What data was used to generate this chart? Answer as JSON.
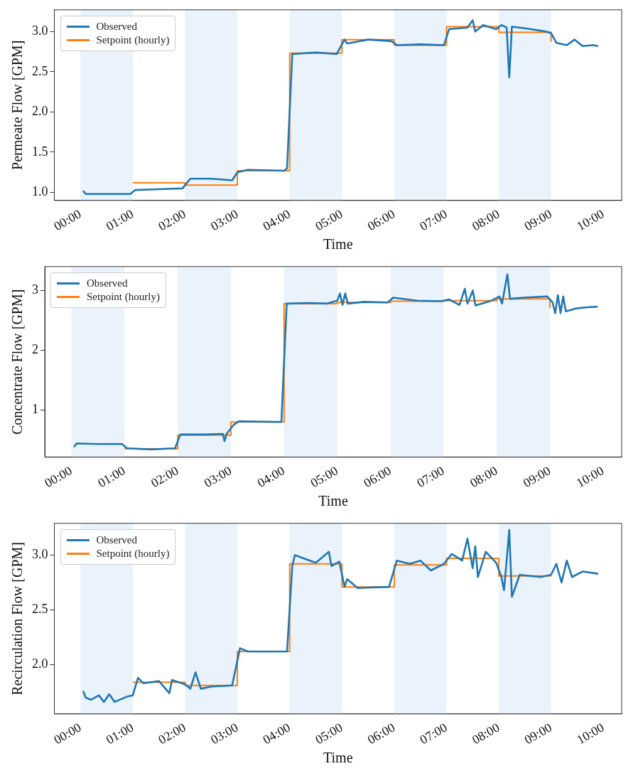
{
  "chart_data": [
    {
      "type": "line",
      "xlabel": "Time",
      "ylabel": "Permeate Flow [GPM]",
      "xlim": [
        -0.5,
        10.35
      ],
      "ylim": [
        0.9,
        3.27
      ],
      "xticks": [
        {
          "value": 0,
          "label": "00:00"
        },
        {
          "value": 1,
          "label": "01:00"
        },
        {
          "value": 2,
          "label": "02:00"
        },
        {
          "value": 3,
          "label": "03:00"
        },
        {
          "value": 4,
          "label": "04:00"
        },
        {
          "value": 5,
          "label": "05:00"
        },
        {
          "value": 6,
          "label": "06:00"
        },
        {
          "value": 7,
          "label": "07:00"
        },
        {
          "value": 8,
          "label": "08:00"
        },
        {
          "value": 9,
          "label": "09:00"
        },
        {
          "value": 10,
          "label": "10:00"
        }
      ],
      "yticks": [
        {
          "value": 1,
          "label": "1.0"
        },
        1.5,
        {
          "value": 2,
          "label": "2.0"
        },
        2.5,
        {
          "value": 3,
          "label": "3.0"
        }
      ],
      "grid": false,
      "legend": "top left",
      "marker": "none",
      "bands": [
        {
          "axis": "x",
          "from": 0,
          "to": 1,
          "color": "#eaf2fb"
        },
        {
          "axis": "x",
          "from": 2,
          "to": 3,
          "color": "#eaf2fb"
        },
        {
          "axis": "x",
          "from": 4,
          "to": 5,
          "color": "#eaf2fb"
        },
        {
          "axis": "x",
          "from": 6,
          "to": 7,
          "color": "#eaf2fb"
        },
        {
          "axis": "x",
          "from": 8,
          "to": 9,
          "color": "#eaf2fb"
        }
      ],
      "series": [
        {
          "name": "Observed",
          "color": "#1f77b4",
          "x": [
            0.05,
            0.1,
            0.5,
            0.95,
            1.05,
            1.5,
            1.95,
            2.1,
            2.5,
            2.9,
            3.0,
            3.2,
            3.9,
            3.95,
            4.05,
            4.5,
            4.9,
            5.05,
            5.1,
            5.5,
            5.95,
            6.05,
            6.5,
            6.95,
            7.05,
            7.4,
            7.5,
            7.55,
            7.7,
            7.95,
            8.05,
            8.15,
            8.2,
            8.25,
            8.5,
            8.9,
            9.0,
            9.1,
            9.3,
            9.45,
            9.6,
            9.8,
            9.9
          ],
          "values": [
            1.02,
            0.98,
            0.98,
            0.98,
            1.03,
            1.04,
            1.05,
            1.17,
            1.17,
            1.15,
            1.25,
            1.28,
            1.27,
            1.3,
            2.72,
            2.74,
            2.72,
            2.9,
            2.85,
            2.9,
            2.88,
            2.83,
            2.84,
            2.83,
            3.03,
            3.05,
            3.14,
            3.0,
            3.08,
            3.03,
            3.08,
            3.05,
            2.43,
            3.06,
            3.04,
            3.0,
            2.98,
            2.86,
            2.83,
            2.9,
            2.82,
            2.83,
            2.82
          ]
        },
        {
          "name": "Setpoint (hourly)",
          "type": "step",
          "color": "#ff7f0e",
          "x": [
            1,
            2,
            3,
            4,
            5,
            6,
            7,
            8,
            9
          ],
          "values": [
            1.12,
            1.09,
            1.27,
            2.73,
            2.9,
            2.83,
            3.06,
            2.99,
            2.87
          ]
        }
      ]
    },
    {
      "type": "line",
      "xlabel": "Time",
      "ylabel": "Concentrate Flow [GPM]",
      "xlim": [
        -0.5,
        10.35
      ],
      "ylim": [
        0.21,
        3.4
      ],
      "xticks": [
        {
          "value": 0,
          "label": "00:00"
        },
        {
          "value": 1,
          "label": "01:00"
        },
        {
          "value": 2,
          "label": "02:00"
        },
        {
          "value": 3,
          "label": "03:00"
        },
        {
          "value": 4,
          "label": "04:00"
        },
        {
          "value": 5,
          "label": "05:00"
        },
        {
          "value": 6,
          "label": "06:00"
        },
        {
          "value": 7,
          "label": "07:00"
        },
        {
          "value": 8,
          "label": "08:00"
        },
        {
          "value": 9,
          "label": "09:00"
        },
        {
          "value": 10,
          "label": "10:00"
        }
      ],
      "yticks": [
        1,
        2,
        3
      ],
      "grid": false,
      "legend": "top left",
      "marker": "none",
      "bands": [
        {
          "axis": "x",
          "from": 0,
          "to": 1,
          "color": "#eaf2fb"
        },
        {
          "axis": "x",
          "from": 2,
          "to": 3,
          "color": "#eaf2fb"
        },
        {
          "axis": "x",
          "from": 4,
          "to": 5,
          "color": "#eaf2fb"
        },
        {
          "axis": "x",
          "from": 6,
          "to": 7,
          "color": "#eaf2fb"
        },
        {
          "axis": "x",
          "from": 8,
          "to": 9,
          "color": "#eaf2fb"
        }
      ],
      "series": [
        {
          "name": "Observed",
          "color": "#1f77b4",
          "x": [
            0.05,
            0.1,
            0.5,
            0.95,
            1.05,
            1.5,
            1.95,
            2.05,
            2.5,
            2.85,
            2.88,
            2.92,
            3.05,
            3.15,
            3.95,
            4.05,
            4.5,
            4.8,
            5.0,
            5.05,
            5.1,
            5.15,
            5.2,
            5.5,
            5.95,
            6.05,
            6.5,
            6.95,
            7.1,
            7.3,
            7.4,
            7.45,
            7.55,
            7.6,
            7.9,
            8.05,
            8.1,
            8.2,
            8.25,
            8.5,
            8.95,
            9.05,
            9.1,
            9.15,
            9.2,
            9.25,
            9.3,
            9.5,
            9.7,
            9.9
          ],
          "values": [
            0.38,
            0.44,
            0.43,
            0.43,
            0.36,
            0.34,
            0.36,
            0.59,
            0.59,
            0.6,
            0.48,
            0.6,
            0.75,
            0.81,
            0.8,
            2.78,
            2.79,
            2.78,
            2.83,
            2.95,
            2.76,
            2.95,
            2.78,
            2.81,
            2.8,
            2.88,
            2.83,
            2.82,
            2.85,
            2.76,
            3.03,
            2.78,
            3.0,
            2.75,
            2.83,
            2.9,
            2.78,
            3.27,
            2.86,
            2.88,
            2.9,
            2.8,
            2.62,
            2.92,
            2.62,
            2.9,
            2.65,
            2.7,
            2.72,
            2.73
          ]
        },
        {
          "name": "Setpoint (hourly)",
          "type": "step",
          "color": "#ff7f0e",
          "x": [
            1,
            2,
            3,
            4,
            5,
            6,
            7,
            8,
            9
          ],
          "values": [
            0.35,
            0.58,
            0.8,
            2.78,
            2.8,
            2.82,
            2.83,
            2.86,
            2.7
          ]
        }
      ]
    },
    {
      "type": "line",
      "xlabel": "Time",
      "ylabel": "Recirculation Flow [GPM]",
      "xlim": [
        -0.5,
        10.35
      ],
      "ylim": [
        1.55,
        3.29
      ],
      "xticks": [
        {
          "value": 0,
          "label": "00:00"
        },
        {
          "value": 1,
          "label": "01:00"
        },
        {
          "value": 2,
          "label": "02:00"
        },
        {
          "value": 3,
          "label": "03:00"
        },
        {
          "value": 4,
          "label": "04:00"
        },
        {
          "value": 5,
          "label": "05:00"
        },
        {
          "value": 6,
          "label": "06:00"
        },
        {
          "value": 7,
          "label": "07:00"
        },
        {
          "value": 8,
          "label": "08:00"
        },
        {
          "value": 9,
          "label": "09:00"
        },
        {
          "value": 10,
          "label": "10:00"
        }
      ],
      "yticks": [
        {
          "value": 2,
          "label": "2.0"
        },
        2.5,
        {
          "value": 3,
          "label": "3.0"
        }
      ],
      "grid": false,
      "legend": "top left",
      "marker": "none",
      "bands": [
        {
          "axis": "x",
          "from": 0,
          "to": 1,
          "color": "#eaf2fb"
        },
        {
          "axis": "x",
          "from": 2,
          "to": 3,
          "color": "#eaf2fb"
        },
        {
          "axis": "x",
          "from": 4,
          "to": 5,
          "color": "#eaf2fb"
        },
        {
          "axis": "x",
          "from": 6,
          "to": 7,
          "color": "#eaf2fb"
        },
        {
          "axis": "x",
          "from": 8,
          "to": 9,
          "color": "#eaf2fb"
        }
      ],
      "series": [
        {
          "name": "Observed",
          "color": "#1f77b4",
          "x": [
            0.05,
            0.1,
            0.2,
            0.35,
            0.45,
            0.55,
            0.65,
            0.9,
            1.0,
            1.1,
            1.2,
            1.5,
            1.7,
            1.75,
            2.0,
            2.1,
            2.2,
            2.3,
            2.5,
            2.9,
            3.05,
            3.2,
            3.95,
            4.05,
            4.1,
            4.5,
            4.75,
            4.8,
            4.95,
            5.05,
            5.1,
            5.3,
            5.9,
            6.05,
            6.3,
            6.5,
            6.7,
            6.95,
            7.1,
            7.3,
            7.4,
            7.5,
            7.55,
            7.6,
            7.75,
            7.95,
            8.05,
            8.1,
            8.15,
            8.2,
            8.25,
            8.4,
            8.8,
            9.0,
            9.1,
            9.2,
            9.3,
            9.4,
            9.6,
            9.9
          ],
          "values": [
            1.76,
            1.7,
            1.68,
            1.72,
            1.66,
            1.73,
            1.66,
            1.71,
            1.72,
            1.88,
            1.83,
            1.85,
            1.74,
            1.86,
            1.82,
            1.78,
            1.93,
            1.78,
            1.8,
            1.81,
            2.15,
            2.12,
            2.12,
            2.9,
            3.0,
            2.93,
            3.03,
            2.9,
            2.94,
            2.71,
            2.78,
            2.7,
            2.71,
            2.95,
            2.92,
            2.95,
            2.86,
            2.92,
            3.01,
            2.95,
            3.15,
            2.88,
            3.08,
            2.8,
            3.03,
            2.93,
            2.8,
            2.68,
            2.95,
            3.23,
            2.62,
            2.82,
            2.8,
            2.82,
            2.92,
            2.75,
            2.95,
            2.8,
            2.85,
            2.83
          ]
        },
        {
          "name": "Setpoint (hourly)",
          "type": "step",
          "color": "#ff7f0e",
          "x": [
            1,
            2,
            3,
            4,
            5,
            6,
            7,
            8,
            9
          ],
          "values": [
            1.84,
            1.81,
            2.12,
            2.92,
            2.71,
            2.91,
            2.97,
            2.81,
            2.81
          ]
        }
      ]
    }
  ]
}
